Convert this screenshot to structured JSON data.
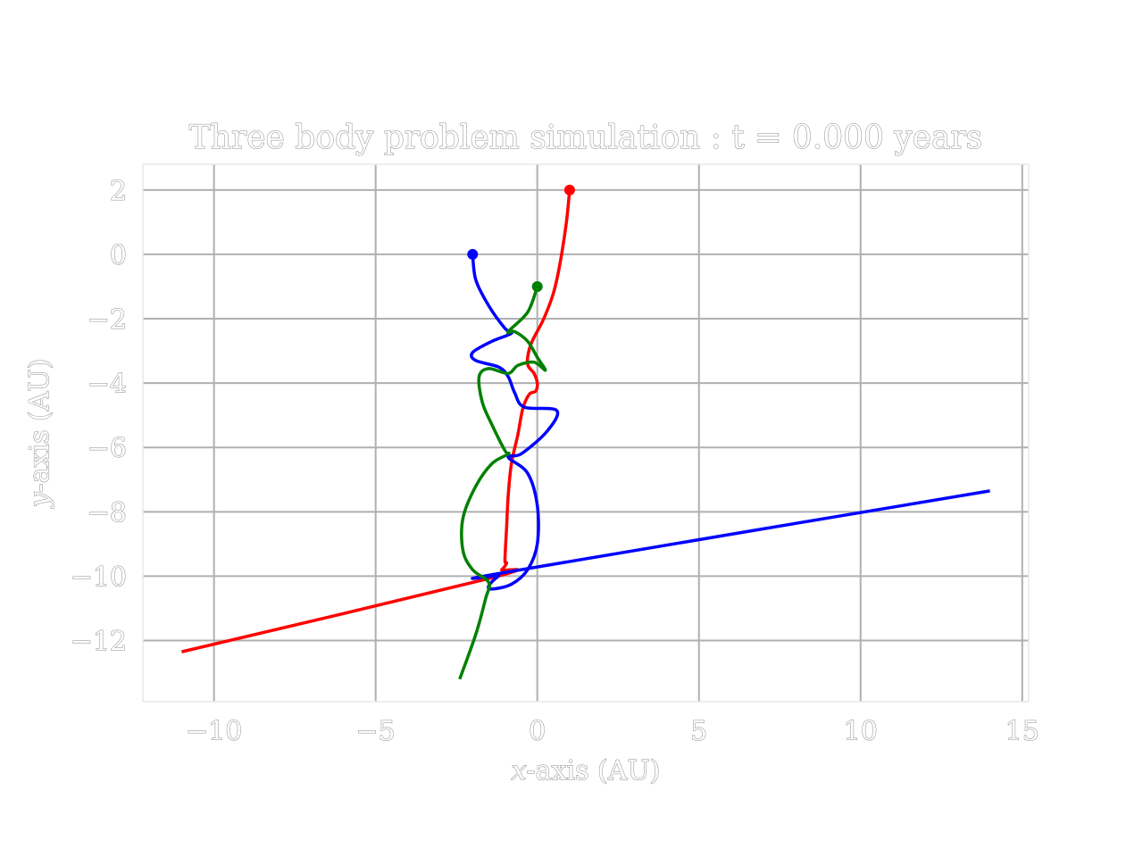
{
  "chart_data": {
    "type": "line",
    "title": "Three body problem simulation : t = 0.000 years",
    "xlabel_var": "x",
    "xlabel_rest": "-axis (AU)",
    "ylabel_var": "y",
    "ylabel_rest": "-axis (AU)",
    "xlim": [
      -12.2,
      15.2
    ],
    "ylim": [
      -13.9,
      2.8
    ],
    "xticks": [
      -10,
      -5,
      0,
      5,
      10,
      15
    ],
    "yticks": [
      -12,
      -10,
      -8,
      -6,
      -4,
      -2,
      0,
      2
    ],
    "xtick_labels": [
      "−10",
      "−5",
      "0",
      "5",
      "10",
      "15"
    ],
    "ytick_labels": [
      "−12",
      "−10",
      "−8",
      "−6",
      "−4",
      "−2",
      "0",
      "2"
    ],
    "grid": true,
    "series": [
      {
        "color": "#ff0000",
        "start": [
          1.0,
          2.0
        ],
        "points": [
          [
            1.0,
            2.0
          ],
          [
            0.9,
            1.0
          ],
          [
            0.7,
            -0.3
          ],
          [
            0.5,
            -1.2
          ],
          [
            0.2,
            -2.0
          ],
          [
            -0.2,
            -2.8
          ],
          [
            -0.3,
            -3.4
          ],
          [
            -0.1,
            -3.7
          ],
          [
            0.0,
            -4.0
          ],
          [
            -0.05,
            -4.25
          ],
          [
            -0.25,
            -4.35
          ],
          [
            -0.45,
            -4.8
          ],
          [
            -0.6,
            -5.6
          ],
          [
            -0.8,
            -6.5
          ],
          [
            -0.9,
            -7.5
          ],
          [
            -0.95,
            -8.5
          ],
          [
            -1.0,
            -9.5
          ],
          [
            -0.95,
            -9.6
          ],
          [
            -1.1,
            -9.8
          ],
          [
            -1.4,
            -10.05
          ],
          [
            -11.0,
            -12.35
          ]
        ]
      },
      {
        "color": "#0000ff",
        "start": [
          -2.0,
          0.0
        ],
        "points": [
          [
            -2.0,
            0.0
          ],
          [
            -1.9,
            -0.8
          ],
          [
            -1.5,
            -1.6
          ],
          [
            -1.0,
            -2.3
          ],
          [
            -0.8,
            -2.45
          ],
          [
            -1.4,
            -2.7
          ],
          [
            -2.0,
            -3.05
          ],
          [
            -1.9,
            -3.3
          ],
          [
            -1.2,
            -3.5
          ],
          [
            -0.9,
            -3.8
          ],
          [
            -0.7,
            -4.3
          ],
          [
            -0.4,
            -4.75
          ],
          [
            0.6,
            -4.85
          ],
          [
            0.3,
            -5.5
          ],
          [
            -0.5,
            -6.2
          ],
          [
            -0.9,
            -6.3
          ],
          [
            -0.3,
            -6.8
          ],
          [
            0.0,
            -7.8
          ],
          [
            0.0,
            -9.0
          ],
          [
            -0.3,
            -9.8
          ],
          [
            -0.8,
            -10.25
          ],
          [
            -1.4,
            -10.4
          ],
          [
            -1.5,
            -10.3
          ],
          [
            -1.2,
            -10.0
          ],
          [
            -0.8,
            -9.85
          ],
          [
            14.0,
            -7.35
          ]
        ]
      },
      {
        "color": "#008000",
        "start": [
          0.0,
          -1.0
        ],
        "points": [
          [
            0.0,
            -1.0
          ],
          [
            -0.3,
            -1.8
          ],
          [
            -0.9,
            -2.4
          ],
          [
            -0.7,
            -2.4
          ],
          [
            -0.3,
            -2.7
          ],
          [
            0.0,
            -3.2
          ],
          [
            0.25,
            -3.6
          ],
          [
            -0.1,
            -3.35
          ],
          [
            -0.6,
            -3.45
          ],
          [
            -0.9,
            -3.7
          ],
          [
            -1.5,
            -3.55
          ],
          [
            -1.8,
            -3.8
          ],
          [
            -1.7,
            -4.6
          ],
          [
            -1.4,
            -5.3
          ],
          [
            -1.0,
            -6.1
          ],
          [
            -0.9,
            -6.2
          ],
          [
            -1.4,
            -6.5
          ],
          [
            -1.9,
            -7.2
          ],
          [
            -2.3,
            -8.2
          ],
          [
            -2.3,
            -9.2
          ],
          [
            -2.0,
            -9.8
          ],
          [
            -1.5,
            -10.2
          ],
          [
            -1.6,
            -10.7
          ],
          [
            -1.9,
            -11.8
          ],
          [
            -2.4,
            -13.2
          ]
        ]
      }
    ]
  }
}
